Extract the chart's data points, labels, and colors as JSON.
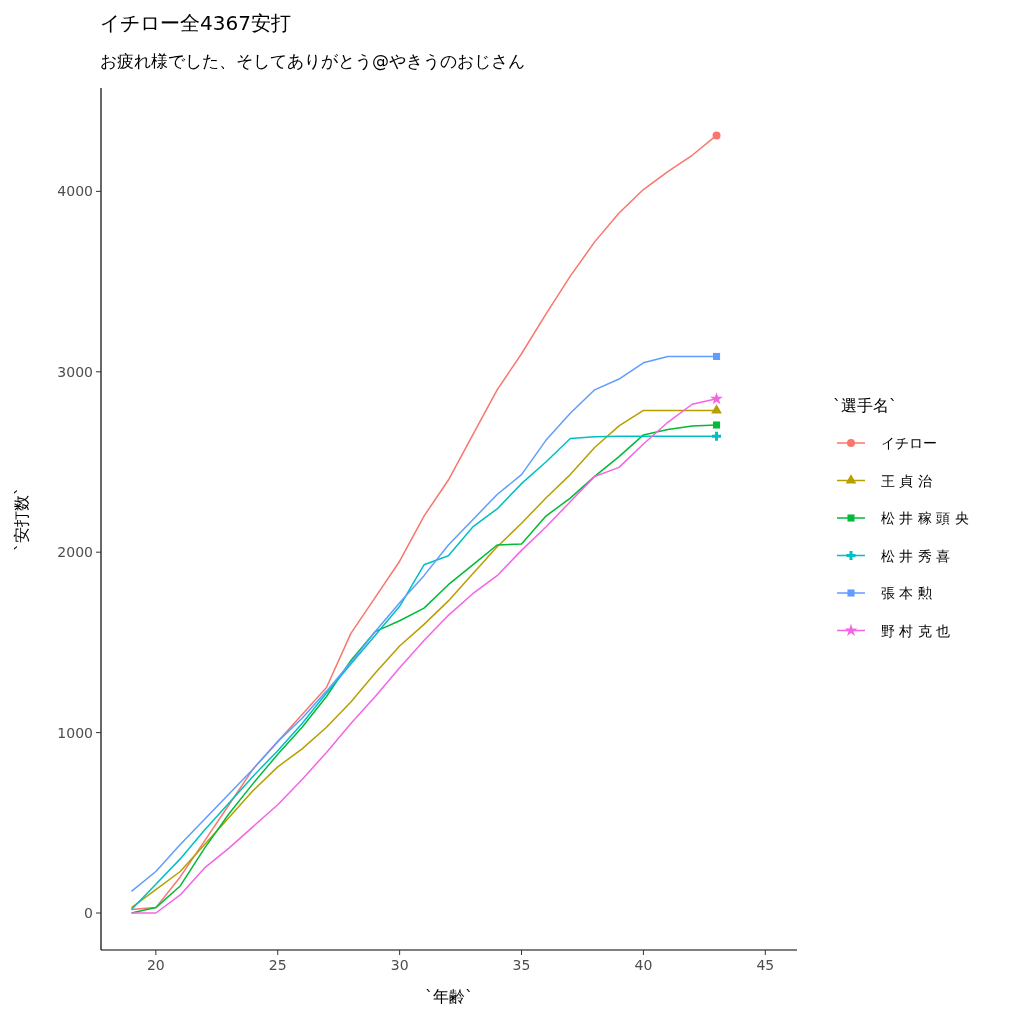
{
  "chart_data": {
    "type": "line",
    "title": "イチロー全4367安打",
    "subtitle": "お疲れ様でした、そしてありがとう@やきうのおじさん",
    "xlabel": "`年齢`",
    "ylabel": "`安打数`",
    "legend_title": "`選手名`",
    "legend": "right",
    "grid": false,
    "x": [
      19,
      20,
      21,
      22,
      23,
      24,
      25,
      26,
      27,
      28,
      29,
      30,
      31,
      32,
      33,
      34,
      35,
      36,
      37,
      38,
      39,
      40,
      41,
      42,
      43
    ],
    "xlim": [
      17.75,
      46.3
    ],
    "xticks": [
      20,
      25,
      30,
      35,
      40,
      45
    ],
    "ylim": [
      -205,
      4573
    ],
    "yticks": [
      0,
      1000,
      2000,
      3000,
      4000
    ],
    "series": [
      {
        "name": "イチロー",
        "color": "#f8766d",
        "marker": "none",
        "values": [
          20,
          30,
          200,
          400,
          600,
          800,
          950,
          1100,
          1250,
          1550,
          1750,
          1950,
          2200,
          2400,
          2650,
          2900,
          3100,
          3320,
          3530,
          3720,
          3880,
          4010,
          4110,
          4200,
          4310
        ]
      },
      {
        "name": "王 貞 治",
        "color": "#b79f00",
        "marker": "none",
        "values": [
          30,
          130,
          230,
          380,
          530,
          680,
          810,
          910,
          1030,
          1170,
          1330,
          1480,
          1600,
          1730,
          1880,
          2030,
          2160,
          2300,
          2430,
          2580,
          2700,
          2786,
          2786,
          2786,
          2786
        ]
      },
      {
        "name": "松 井 稼 頭 央",
        "color": "#00ba38",
        "marker": "none",
        "values": [
          0,
          30,
          150,
          360,
          550,
          720,
          880,
          1030,
          1200,
          1400,
          1560,
          1620,
          1690,
          1820,
          1930,
          2040,
          2045,
          2200,
          2300,
          2420,
          2530,
          2650,
          2680,
          2700,
          2705
        ]
      },
      {
        "name": "松 井 秀 喜",
        "color": "#00bfc4",
        "marker": "none",
        "values": [
          20,
          160,
          300,
          460,
          610,
          760,
          900,
          1050,
          1220,
          1380,
          1540,
          1700,
          1930,
          1980,
          2140,
          2240,
          2380,
          2500,
          2630,
          2640,
          2643,
          2643,
          2643,
          2643,
          2643
        ]
      },
      {
        "name": "張 本 勲",
        "color": "#619cff",
        "marker": "none",
        "values": [
          120,
          230,
          380,
          520,
          660,
          800,
          950,
          1080,
          1230,
          1390,
          1560,
          1720,
          1870,
          2040,
          2180,
          2320,
          2430,
          2620,
          2770,
          2900,
          2960,
          3050,
          3085,
          3085,
          3085
        ]
      },
      {
        "name": "野 村 克 也",
        "color": "#f564e3",
        "marker": "none",
        "values": [
          0,
          0,
          100,
          250,
          360,
          480,
          600,
          740,
          890,
          1050,
          1200,
          1360,
          1510,
          1650,
          1770,
          1870,
          2010,
          2140,
          2280,
          2420,
          2470,
          2600,
          2720,
          2820,
          2850
        ]
      },
      {
        "type": "scatter",
        "color": "#f8766d",
        "marker": "circle",
        "values": [
          null,
          null,
          null,
          null,
          null,
          null,
          null,
          null,
          null,
          null,
          null,
          null,
          null,
          null,
          null,
          null,
          null,
          null,
          null,
          null,
          null,
          null,
          null,
          null,
          4310
        ]
      },
      {
        "type": "scatter",
        "color": "#b79f00",
        "marker": "triangle",
        "values": [
          null,
          null,
          null,
          null,
          null,
          null,
          null,
          null,
          null,
          null,
          null,
          null,
          null,
          null,
          null,
          null,
          null,
          null,
          null,
          null,
          null,
          null,
          null,
          null,
          2786
        ]
      },
      {
        "type": "scatter",
        "color": "#00ba38",
        "marker": "square",
        "values": [
          null,
          null,
          null,
          null,
          null,
          null,
          null,
          null,
          null,
          null,
          null,
          null,
          null,
          null,
          null,
          null,
          null,
          null,
          null,
          null,
          null,
          null,
          null,
          null,
          2705
        ]
      },
      {
        "type": "scatter",
        "color": "#00bfc4",
        "marker": "cross",
        "values": [
          null,
          null,
          null,
          null,
          null,
          null,
          null,
          null,
          null,
          null,
          null,
          null,
          null,
          null,
          null,
          null,
          null,
          null,
          null,
          null,
          null,
          null,
          null,
          null,
          2643
        ]
      },
      {
        "type": "scatter",
        "color": "#619cff",
        "marker": "square",
        "values": [
          null,
          null,
          null,
          null,
          null,
          null,
          null,
          null,
          null,
          null,
          null,
          null,
          null,
          null,
          null,
          null,
          null,
          null,
          null,
          null,
          null,
          null,
          null,
          null,
          3085
        ]
      },
      {
        "type": "scatter",
        "color": "#f564e3",
        "marker": "star",
        "values": [
          null,
          null,
          null,
          null,
          null,
          null,
          null,
          null,
          null,
          null,
          null,
          null,
          null,
          null,
          null,
          null,
          null,
          null,
          null,
          null,
          null,
          null,
          null,
          null,
          2850
        ]
      }
    ]
  }
}
